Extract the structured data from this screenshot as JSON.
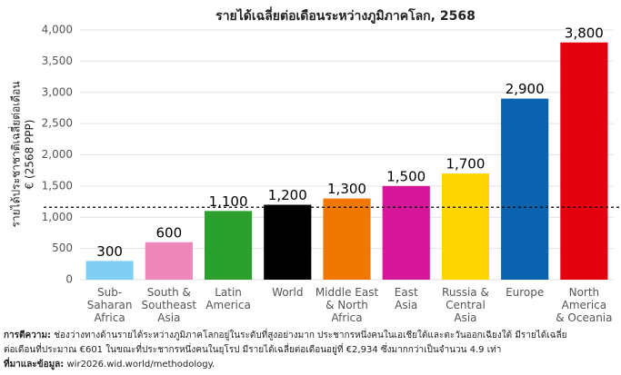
{
  "chart_data": {
    "type": "bar",
    "title": "รายได้เฉลี่ยต่อเดือนระหว่างภูมิภาคโลก, 2568",
    "y_label": [
      "รายได้ประชาชาติเฉลี่ยต่อเดือน",
      "€ (2568 PPP)"
    ],
    "categories": [
      [
        "Sub-",
        "Saharan",
        "Africa"
      ],
      [
        "South &",
        "Southeast",
        "Asia"
      ],
      [
        "Latin",
        "America"
      ],
      [
        "World"
      ],
      [
        "Middle East",
        "& North",
        "Africa"
      ],
      [
        "East",
        "Asia"
      ],
      [
        "Russia &",
        "Central",
        "Asia"
      ],
      [
        "Europe"
      ],
      [
        "North",
        "America",
        "& Oceania"
      ]
    ],
    "values": [
      300,
      600,
      1100,
      1200,
      1300,
      1500,
      1700,
      2900,
      3800
    ],
    "value_labels": [
      "300",
      "600",
      "1,100",
      "1,200",
      "1,300",
      "1,500",
      "1,700",
      "2,900",
      "3,800"
    ],
    "colors": [
      "#80cff3",
      "#ee88bb",
      "#2ca02c",
      "#000000",
      "#f07800",
      "#d6179a",
      "#ffd600",
      "#0b63b0",
      "#e3000f"
    ],
    "reference_line": 1160,
    "ylim": [
      0,
      4000
    ],
    "yticks": [
      0,
      500,
      {
        "value": 1000,
        "label": "1,000"
      },
      {
        "value": 1500,
        "label": "1,500"
      },
      {
        "value": 2000,
        "label": "2,000"
      },
      {
        "value": 2500,
        "label": "2,500"
      },
      {
        "value": 3000,
        "label": "3,000"
      },
      {
        "value": 3500,
        "label": "3,500"
      },
      {
        "value": 4000,
        "label": "4,000"
      }
    ],
    "grid": true,
    "notes": {
      "interpretation_label": "การตีความ:",
      "interpretation": [
        "ช่องว่างทางด้านรายได้ระหว่างภูมิภาคโลกอยู่ในระดับที่สูงอย่างมาก ประชากรหนึ่งคนในเอเชียใต้และตะวันออกเฉียงใต้ มีรายได้เฉลี่ย",
        "ต่อเดือนที่ประมาณ €601 ในขณะที่ประชากรหนึ่งคนในยุโรป มีรายได้เฉลี่ยต่อเดือนอยู่ที่ €2,934 ซึ่งมากกว่าเป็นจำนวน 4.9 เท่า"
      ],
      "source_label": "ที่มาและข้อมูล:",
      "source": "wir2026.wid.world/methodology."
    }
  }
}
